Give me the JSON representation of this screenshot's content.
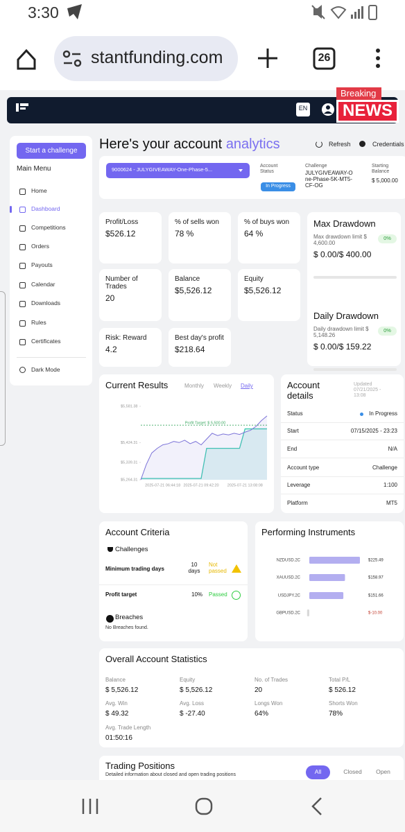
{
  "status_bar": {
    "time": "3:30"
  },
  "browser": {
    "url": "stantfunding.com",
    "tab_count": 26
  },
  "header": {
    "language": "EN",
    "badge_top": "Breaking",
    "badge_bottom": "NEWS"
  },
  "sidebar": {
    "button": "Start a challenge",
    "menu_title": "Main Menu",
    "items": [
      "Home",
      "Dashboard",
      "Competitions",
      "Orders",
      "Payouts",
      "Calendar",
      "Downloads",
      "Rules",
      "Certificates"
    ],
    "dark_mode": "Dark Mode"
  },
  "page": {
    "title_prefix": "Here's your account",
    "title_highlight": "analytics",
    "refresh": "Refresh",
    "credentials": "Credentials",
    "account_select": "9000624 - JULYGIVEAWAY-One-Phase-5...",
    "account_status_label": "Account Status",
    "account_status": "In Progress",
    "challenge_label": "Challenge",
    "challenge": "JULYGIVEAWAY-One-Phase-5K-MT5-CF-OG",
    "starting_balance_label": "Starting Balance",
    "starting_balance": "$ 5,000.00"
  },
  "stats": [
    {
      "label": "Profit/Loss",
      "value": "$526.12"
    },
    {
      "label": "% of sells won",
      "value": "78 %"
    },
    {
      "label": "% of buys won",
      "value": "64 %"
    },
    {
      "label": "Number of Trades",
      "value": "20"
    },
    {
      "label": "Balance",
      "value": "$5,526.12"
    },
    {
      "label": "Equity",
      "value": "$5,526.12"
    },
    {
      "label": "Risk: Reward",
      "value": "4.2"
    },
    {
      "label": "Best day's profit",
      "value": "$218.64"
    }
  ],
  "max_drawdown": {
    "title": "Max Drawdown",
    "limit": "Max drawdown limit $ 4,600.00",
    "badge": "0%",
    "value": "$ 0.00/$ 400.00"
  },
  "daily_drawdown": {
    "title": "Daily Drawdown",
    "limit": "Daily drawdown limit $ 5,148.26",
    "badge": "0%",
    "value": "$ 0.00/$ 159.22"
  },
  "current_results": {
    "tabs": [
      "Monthly",
      "Weekly",
      "Daily"
    ]
  },
  "account_details": {
    "title": "Account details",
    "updated": "Updated 07/21/2025 - 13:08",
    "rows": [
      [
        "Status",
        "In Progress"
      ],
      [
        "Start",
        "07/15/2025 - 23:23"
      ],
      [
        "End",
        "N/A"
      ],
      [
        "Account type",
        "Challenge"
      ],
      [
        "Leverage",
        "1:100"
      ],
      [
        "Platform",
        "MT5"
      ]
    ]
  },
  "account_criteria": {
    "title": "Account Criteria",
    "challenges": "Challenges",
    "rows": [
      [
        "Minimum trading days",
        "10 days",
        "Not passed"
      ],
      [
        "Profit target",
        "10%",
        "Passed"
      ]
    ],
    "breaches": "Breaches",
    "breaches_note": "No Breaches found."
  },
  "overall": {
    "title": "Overall Account Statistics",
    "items": [
      [
        "Balance",
        "$ 5,526.12"
      ],
      [
        "Equity",
        "$ 5,526.12"
      ],
      [
        "No. of Trades",
        "20"
      ],
      [
        "Total P/L",
        "$ 526.12"
      ],
      [
        "Avg. Win",
        "$ 49.32"
      ],
      [
        "Avg. Loss",
        "$ -27.40"
      ],
      [
        "Longs Won",
        "64%"
      ],
      [
        "Shorts Won",
        "78%"
      ],
      [
        "Avg. Trade Length",
        "01:50:16"
      ]
    ]
  },
  "trading_positions": {
    "title": "Trading Positions",
    "subtitle": "Detailed information about closed and open trading positions",
    "tabs": [
      "All",
      "Closed",
      "Open"
    ]
  },
  "chart_data": [
    {
      "type": "line",
      "title": "Current Results",
      "categories": [
        null,
        null,
        null,
        null,
        "2025-07-21 06:44:18",
        null,
        null,
        null,
        null,
        null,
        null,
        "2025-07-21 09:42:20",
        null,
        null,
        null,
        null,
        null,
        null,
        null,
        "2025-07-21 13:08:08",
        null,
        null,
        null,
        null
      ],
      "series": [
        {
          "color": "#7b72d8",
          "values": [
            5264,
            5330,
            5380,
            5400,
            5415,
            5420,
            5430,
            5425,
            5435,
            5420,
            5430,
            5415,
            5440,
            5465,
            5455,
            5462,
            5458,
            5465,
            5460,
            5470,
            5478,
            5495,
            5520,
            5540
          ]
        },
        {
          "color": "#3cc9b0",
          "values": [
            5270,
            5270,
            5270,
            5270,
            5270,
            5270,
            5270,
            5270,
            5270,
            5270,
            5270,
            5270,
            5400,
            5400,
            5400,
            5400,
            5400,
            5400,
            5400,
            5484,
            5484,
            5484,
            5484,
            5484
          ]
        }
      ],
      "ylim": [
        5264.31,
        5581.38
      ],
      "yticks": [
        {
          "value": 5581.38,
          "label": "$5,581.38"
        },
        {
          "value": 5424.31,
          "label": "$5,424.31"
        },
        {
          "value": 5339.31,
          "label": "$5,339.31"
        },
        {
          "value": 5264.31,
          "label": "$5,264.31"
        }
      ],
      "profit_target": {
        "label": "Profit Target: $ 5,500.00",
        "value": 5500,
        "color": "#3aa860"
      }
    },
    {
      "type": "hbar",
      "title": "Performing Instruments",
      "categories": [
        "NZDUSD.2C",
        "XAUUSD.2C",
        "USDJPY.2C",
        "GBPUSD.2C"
      ],
      "values": [
        225.49,
        158.97,
        151.66,
        -10.0
      ],
      "value_labels": [
        "$225.49",
        "$158.97",
        "$151.66",
        "$-10.00"
      ],
      "color": "#b3aef0",
      "negative_color": "#d9d9d9"
    }
  ]
}
